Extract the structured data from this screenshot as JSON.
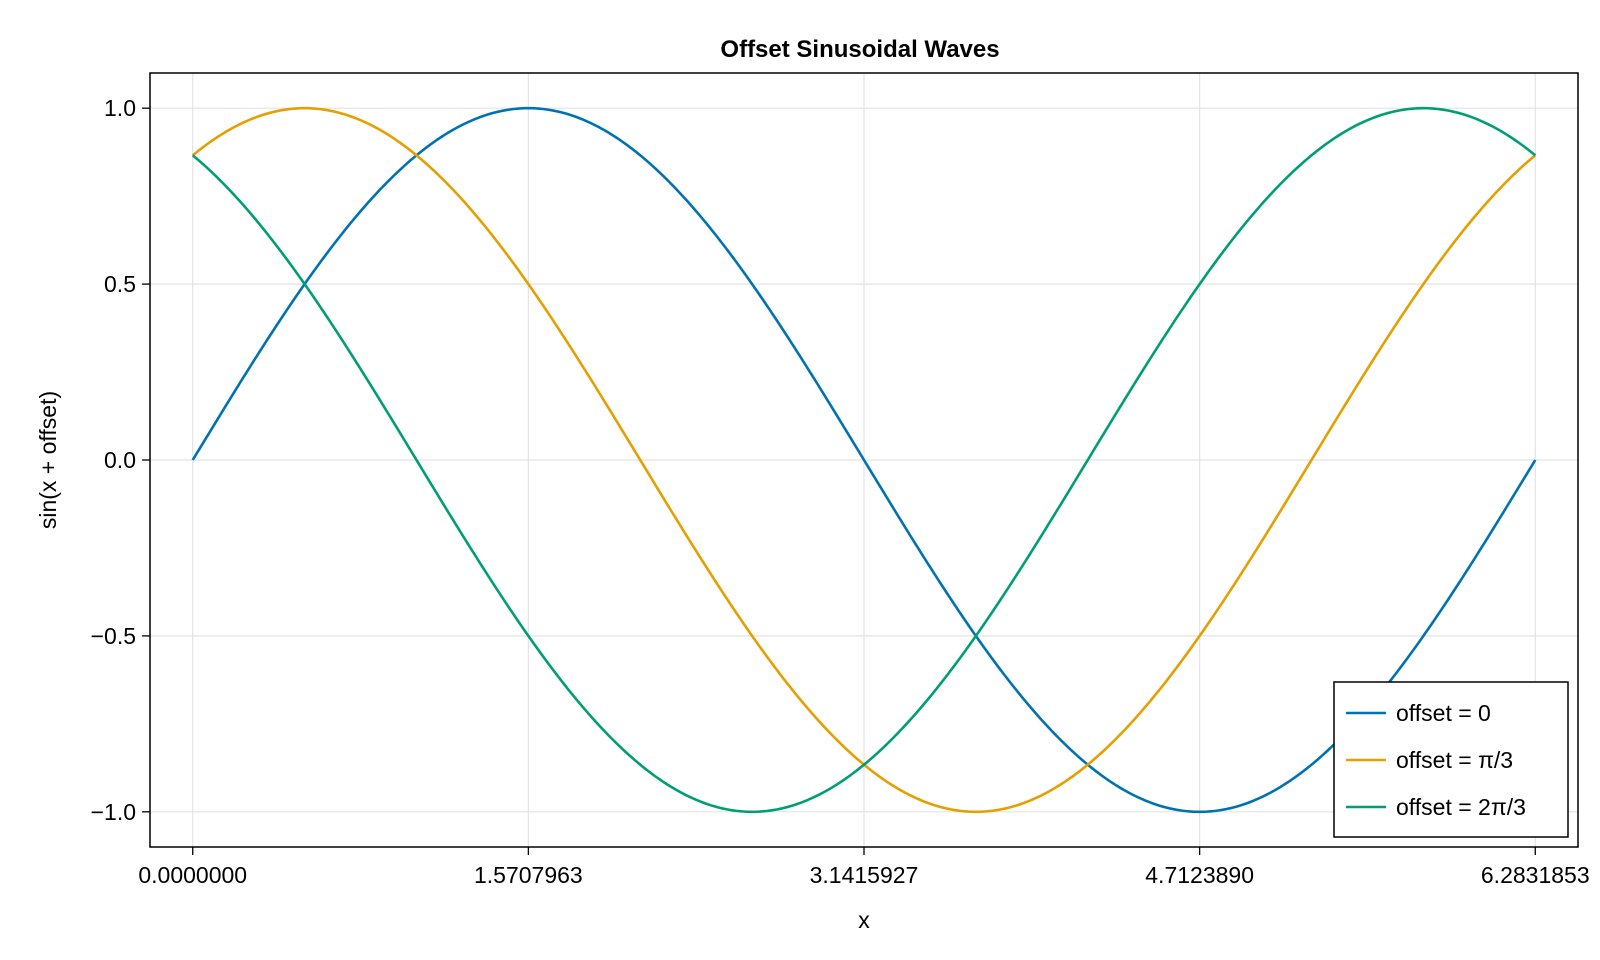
{
  "chart_data": {
    "type": "line",
    "title": "Offset Sinusoidal Waves",
    "xlabel": "x",
    "ylabel": "sin(x + offset)",
    "xlim": [
      -0.2,
      6.4831853
    ],
    "ylim": [
      -1.1,
      1.1
    ],
    "x_ticks": [
      0,
      1.5707963,
      3.1415927,
      4.712389,
      6.2831853
    ],
    "x_tick_labels": [
      "0.0000000",
      "1.5707963",
      "3.1415927",
      "4.7123890",
      "6.2831853"
    ],
    "y_ticks": [
      1.0,
      0.5,
      0.0,
      -0.5,
      -1.0
    ],
    "y_tick_labels": [
      "1.0",
      "0.5",
      "0.0",
      "−0.5",
      "−1.0"
    ],
    "grid": true,
    "legend_position": "bottom-right",
    "function": "sin(x + offset)",
    "x_range": [
      0,
      6.2831853
    ],
    "series": [
      {
        "name": "offset = 0",
        "offset": 0,
        "color": "#0072b2"
      },
      {
        "name": "offset = π/3",
        "offset": 1.0471976,
        "color": "#e69f00"
      },
      {
        "name": "offset = 2π/3",
        "offset": 2.0943951,
        "color": "#009e73"
      }
    ]
  }
}
